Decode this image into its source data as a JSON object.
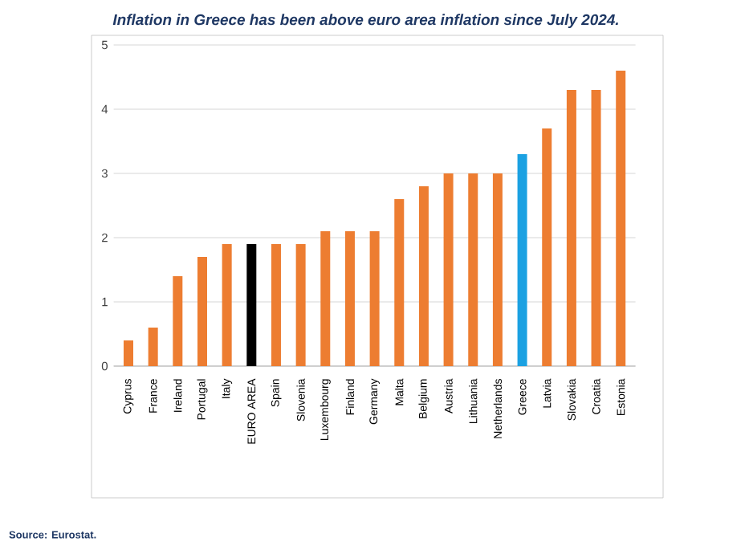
{
  "chart_data": {
    "type": "bar",
    "title": "Inflation in Greece has been above euro area inflation since July 2024.",
    "categories": [
      "Cyprus",
      "France",
      "Ireland",
      "Portugal",
      "Italy",
      "EURO AREA",
      "Spain",
      "Slovenia",
      "Luxembourg",
      "Finland",
      "Germany",
      "Malta",
      "Belgium",
      "Austria",
      "Lithuania",
      "Netherlands",
      "Greece",
      "Latvia",
      "Slovakia",
      "Croatia",
      "Estonia"
    ],
    "values": [
      0.4,
      0.6,
      1.4,
      1.7,
      1.9,
      1.9,
      1.9,
      1.9,
      2.1,
      2.1,
      2.1,
      2.6,
      2.8,
      3.0,
      3.0,
      3.0,
      3.3,
      3.7,
      4.3,
      4.3,
      4.6
    ],
    "colors": [
      "#ed7d31",
      "#ed7d31",
      "#ed7d31",
      "#ed7d31",
      "#ed7d31",
      "#000000",
      "#ed7d31",
      "#ed7d31",
      "#ed7d31",
      "#ed7d31",
      "#ed7d31",
      "#ed7d31",
      "#ed7d31",
      "#ed7d31",
      "#ed7d31",
      "#ed7d31",
      "#1ba1e2",
      "#ed7d31",
      "#ed7d31",
      "#ed7d31",
      "#ed7d31"
    ],
    "ylim": [
      0,
      5
    ],
    "yticks": [
      0,
      1,
      2,
      3,
      4,
      5
    ],
    "grid": "y",
    "annotations": [
      "Source: Eurostat."
    ]
  }
}
